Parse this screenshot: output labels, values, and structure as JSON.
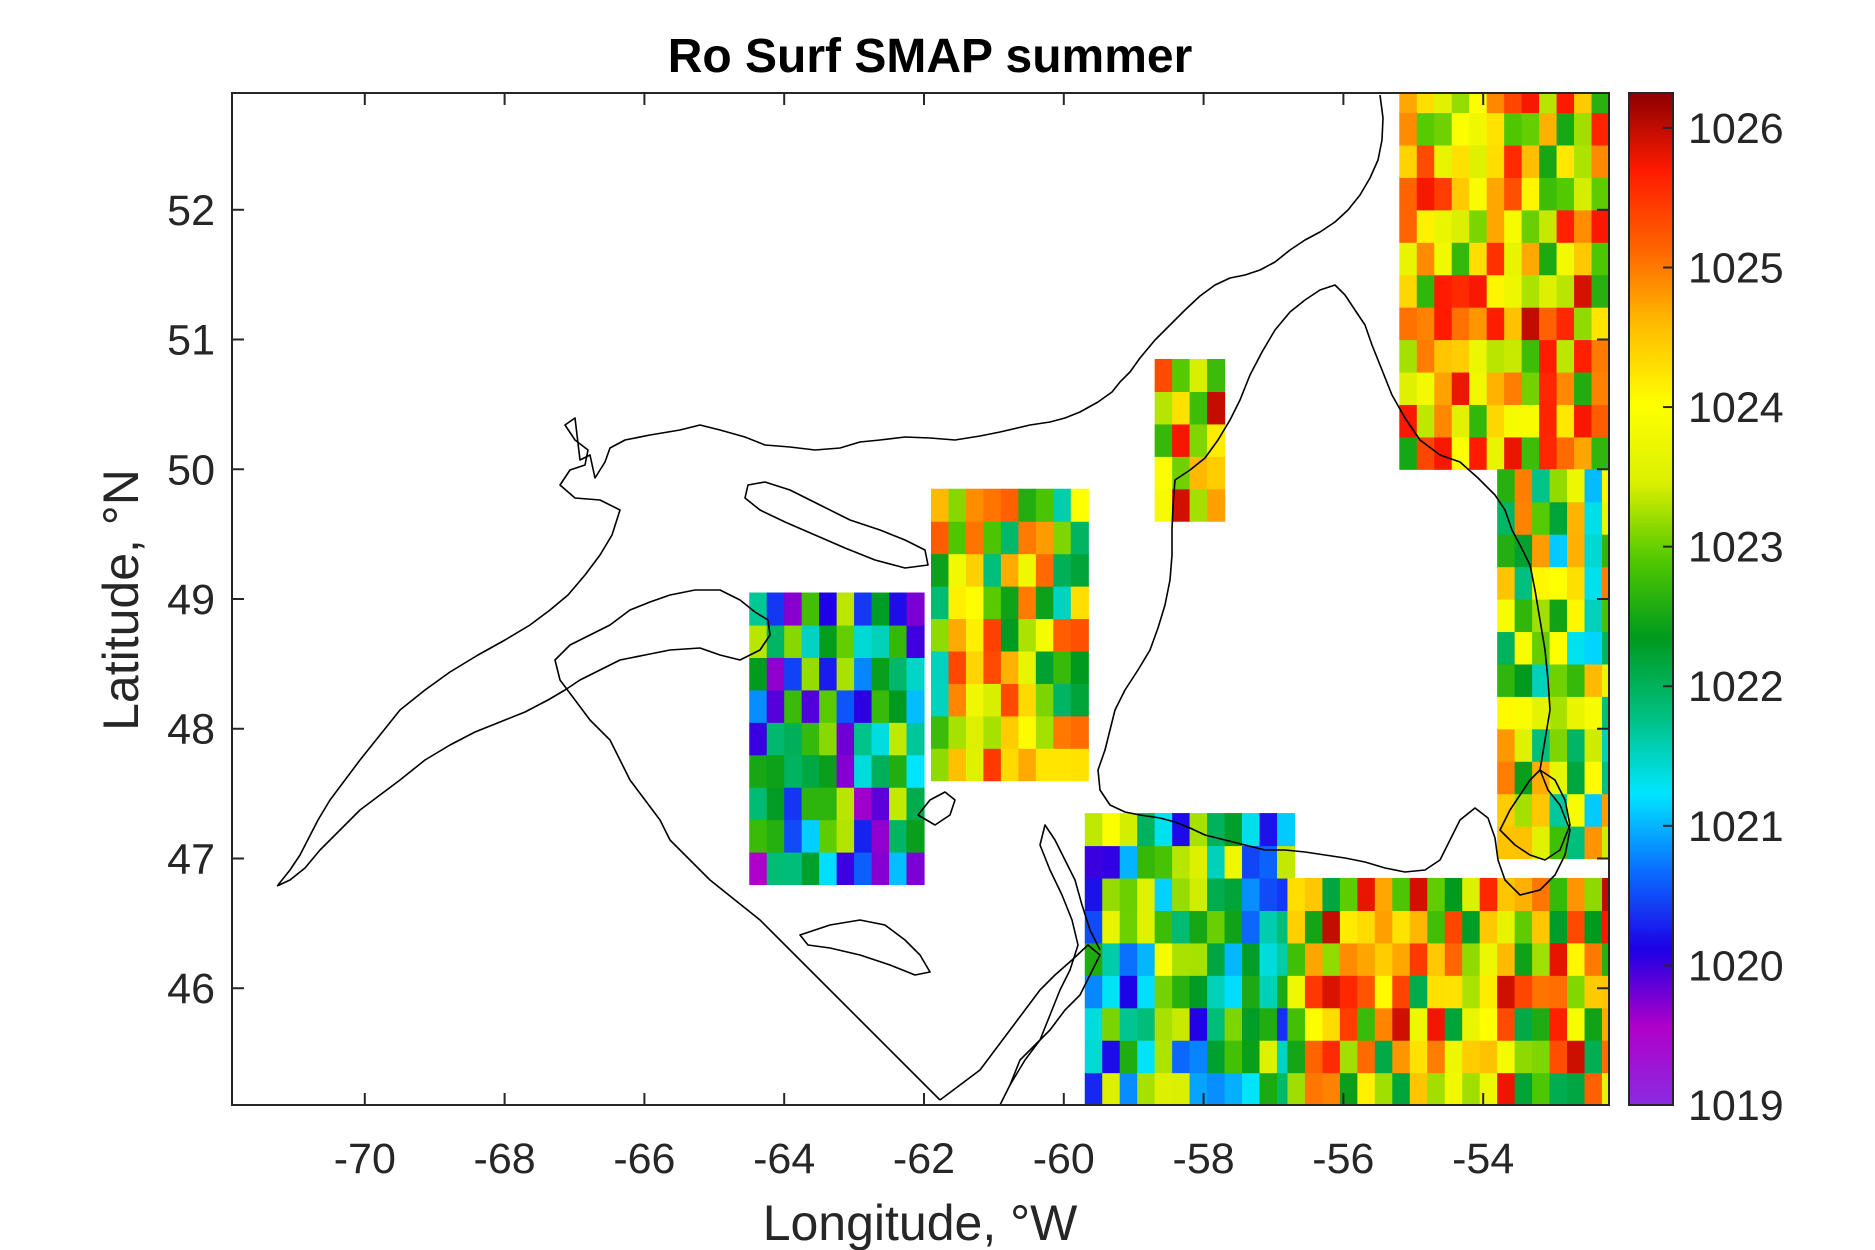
{
  "chart_data": {
    "type": "heatmap",
    "title": "Ro Surf SMAP summer",
    "xlabel": "Longitude, °W",
    "ylabel": "Latitude, °N",
    "xlim": [
      -71.9,
      -52.2
    ],
    "ylim": [
      45.1,
      52.9
    ],
    "x_ticks": [
      -70,
      -68,
      -66,
      -64,
      -62,
      -60,
      -58,
      -56,
      -54
    ],
    "y_ticks": [
      46,
      47,
      48,
      49,
      50,
      51,
      52
    ],
    "grid": false,
    "colorbar": {
      "limits": [
        1019,
        1026.25
      ],
      "ticks": [
        1019,
        1020,
        1021,
        1022,
        1023,
        1024,
        1025,
        1026
      ],
      "colormap": [
        "#8a2be2",
        "#b000c8",
        "#1e00e6",
        "#0a6cff",
        "#00e6ff",
        "#00c080",
        "#009a1e",
        "#50c800",
        "#dcf000",
        "#ffff00",
        "#ffbe00",
        "#ff6400",
        "#ff1a00",
        "#8b0000"
      ]
    },
    "cell_size_deg": [
      0.25,
      0.25
    ],
    "regions": [
      {
        "name_hint": "labrador-shelf",
        "lon": [
          -55.2,
          -52.2
        ],
        "lat": [
          50.0,
          52.9
        ],
        "value_range": [
          1022.5,
          1026.0
        ]
      },
      {
        "name_hint": "east-newfoundland",
        "lon": [
          -53.8,
          -52.2
        ],
        "lat": [
          47.0,
          50.0
        ],
        "value_range": [
          1021.0,
          1025.0
        ]
      },
      {
        "name_hint": "strait-of-belle-isle",
        "lon": [
          -58.7,
          -57.9
        ],
        "lat": [
          49.6,
          50.8
        ],
        "value_range": [
          1022.5,
          1026.0
        ]
      },
      {
        "name_hint": "central-gulf",
        "lon": [
          -61.9,
          -59.7
        ],
        "lat": [
          47.6,
          49.7
        ],
        "value_range": [
          1021.5,
          1025.5
        ]
      },
      {
        "name_hint": "western-gulf",
        "lon": [
          -64.5,
          -62.0
        ],
        "lat": [
          46.8,
          48.9
        ],
        "value_range": [
          1019.5,
          1023.5
        ]
      },
      {
        "name_hint": "cabot-strait",
        "lon": [
          -59.7,
          -56.8
        ],
        "lat": [
          45.1,
          47.3
        ],
        "value_range": [
          1020.0,
          1024.0
        ]
      },
      {
        "name_hint": "scotian-shelf-grand-banks",
        "lon": [
          -56.8,
          -52.2
        ],
        "lat": [
          45.1,
          46.7
        ],
        "value_range": [
          1022.0,
          1026.0
        ]
      }
    ]
  }
}
